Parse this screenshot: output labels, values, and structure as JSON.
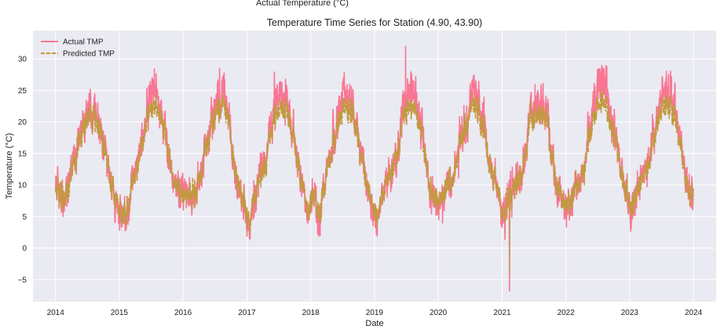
{
  "caption": "Actual Temperature (°C)",
  "chart_data": {
    "type": "line",
    "title": "Temperature Time Series for Station (4.90, 43.90)",
    "xlabel": "Date",
    "ylabel": "Temperature (°C)",
    "xlim": [
      "2013-08-25",
      "2024-05-10"
    ],
    "ylim": [
      -8.5,
      34.5
    ],
    "x_ticks": [
      "2014",
      "2015",
      "2016",
      "2017",
      "2018",
      "2019",
      "2020",
      "2021",
      "2022",
      "2023",
      "2024"
    ],
    "y_ticks": [
      -5,
      0,
      5,
      10,
      15,
      20,
      25,
      30
    ],
    "y_tick_labels": [
      "−5",
      "0",
      "5",
      "10",
      "15",
      "20",
      "25",
      "30"
    ],
    "grid": true,
    "legend_position": "top-left",
    "colors": {
      "background": "#eaeaf2",
      "grid": "#ffffff",
      "actual": "#f87693",
      "predicted": "#c19a3f"
    },
    "series": [
      {
        "name": "Actual TMP",
        "style": "solid",
        "approximate_monthly_values": [
          {
            "year": 2014,
            "values": [
              9.5,
              7.5,
              10.5,
              13.5,
              17.0,
              20.5,
              22.0,
              22.0,
              19.0,
              15.0,
              10.5,
              7.0
            ]
          },
          {
            "year": 2015,
            "values": [
              4.5,
              5.0,
              9.5,
              13.5,
              18.0,
              23.5,
              26.0,
              24.0,
              19.0,
              14.0,
              10.5,
              9.0
            ]
          },
          {
            "year": 2016,
            "values": [
              8.5,
              8.0,
              9.0,
              12.5,
              16.0,
              21.0,
              24.5,
              24.0,
              21.5,
              14.5,
              10.0,
              7.0
            ]
          },
          {
            "year": 2017,
            "values": [
              3.5,
              8.5,
              11.5,
              13.5,
              18.0,
              23.5,
              24.0,
              23.5,
              18.5,
              15.5,
              9.5,
              5.5
            ]
          },
          {
            "year": 2018,
            "values": [
              9.0,
              4.5,
              9.0,
              14.0,
              17.5,
              22.0,
              25.0,
              24.5,
              21.0,
              15.5,
              10.5,
              7.0
            ]
          },
          {
            "year": 2019,
            "values": [
              4.5,
              8.0,
              11.0,
              12.5,
              15.5,
              22.5,
              25.5,
              24.5,
              21.0,
              16.0,
              9.5,
              8.0
            ]
          },
          {
            "year": 2020,
            "values": [
              7.0,
              10.5,
              10.5,
              14.0,
              18.5,
              20.5,
              24.5,
              24.0,
              20.5,
              13.5,
              11.5,
              7.0
            ]
          },
          {
            "year": 2021,
            "values": [
              5.0,
              9.5,
              10.5,
              11.5,
              15.0,
              21.5,
              23.0,
              22.5,
              21.0,
              14.0,
              8.5,
              7.5
            ]
          },
          {
            "year": 2022,
            "values": [
              6.5,
              9.0,
              10.0,
              12.5,
              19.0,
              24.0,
              26.5,
              25.5,
              20.5,
              18.0,
              12.0,
              8.5
            ]
          },
          {
            "year": 2023,
            "values": [
              6.5,
              8.5,
              12.0,
              13.5,
              17.5,
              23.0,
              25.0,
              25.0,
              22.5,
              18.0,
              11.5,
              9.0
            ]
          }
        ],
        "extremes": {
          "max": 32.0,
          "max_date": "2019-06-28",
          "min": -6.8,
          "min_date": "2021-02-12"
        }
      },
      {
        "name": "Predicted TMP",
        "style": "dashed",
        "approximate_monthly_values": [
          {
            "year": 2014,
            "values": [
              9.0,
              8.0,
              10.0,
              13.0,
              16.5,
              19.5,
              21.0,
              21.0,
              18.5,
              15.0,
              10.5,
              7.5
            ]
          },
          {
            "year": 2015,
            "values": [
              5.0,
              5.5,
              9.5,
              13.0,
              17.5,
              21.5,
              22.5,
              22.0,
              18.5,
              14.0,
              10.5,
              9.0
            ]
          },
          {
            "year": 2016,
            "values": [
              8.5,
              8.5,
              9.0,
              12.5,
              16.0,
              20.0,
              22.5,
              22.5,
              20.5,
              14.5,
              10.0,
              7.5
            ]
          },
          {
            "year": 2017,
            "values": [
              4.0,
              8.5,
              11.0,
              13.0,
              17.5,
              21.5,
              22.0,
              22.0,
              18.0,
              15.0,
              9.5,
              6.0
            ]
          },
          {
            "year": 2018,
            "values": [
              9.0,
              5.0,
              9.0,
              13.5,
              17.0,
              20.5,
              22.5,
              22.0,
              20.0,
              15.0,
              10.5,
              7.5
            ]
          },
          {
            "year": 2019,
            "values": [
              5.0,
              8.0,
              10.5,
              12.5,
              15.5,
              21.0,
              22.5,
              22.0,
              20.0,
              15.5,
              9.5,
              8.0
            ]
          },
          {
            "year": 2020,
            "values": [
              7.5,
              10.0,
              10.5,
              13.5,
              18.0,
              20.0,
              22.5,
              22.0,
              19.5,
              13.5,
              11.0,
              7.5
            ]
          },
          {
            "year": 2021,
            "values": [
              5.5,
              9.0,
              10.0,
              11.5,
              15.0,
              20.5,
              21.5,
              21.0,
              20.0,
              14.0,
              9.0,
              7.5
            ]
          },
          {
            "year": 2022,
            "values": [
              7.0,
              9.0,
              10.0,
              12.5,
              18.0,
              21.5,
              23.0,
              22.5,
              19.5,
              17.0,
              11.5,
              8.5
            ]
          },
          {
            "year": 2023,
            "values": [
              7.0,
              8.5,
              11.5,
              13.0,
              17.0,
              21.0,
              22.5,
              22.5,
              21.0,
              17.0,
              11.0,
              8.5
            ]
          }
        ]
      }
    ]
  }
}
